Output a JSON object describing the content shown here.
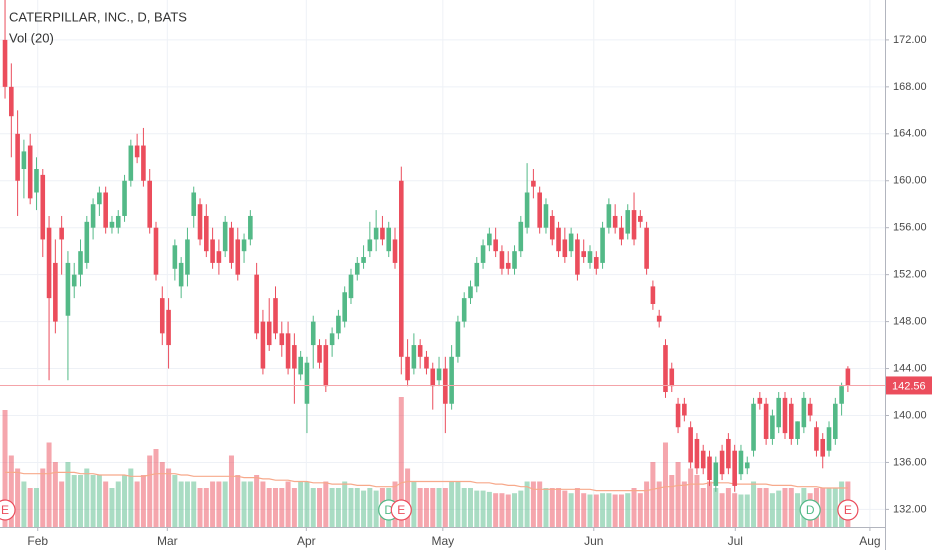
{
  "chart_data": {
    "type": "candlestick",
    "title": "CATERPILLAR, INC., D, BATS",
    "indicator": "Vol (20)",
    "colors": {
      "up": "#53b987",
      "down": "#eb4d5c"
    },
    "open": [
      172,
      168,
      164,
      161,
      163,
      159,
      160.5,
      156,
      153,
      156,
      148.5,
      151,
      152,
      153,
      156,
      158,
      159,
      156,
      156,
      157,
      160,
      163,
      163,
      160,
      156,
      150,
      149,
      152.5,
      151,
      152,
      157,
      158,
      157,
      155,
      154,
      154,
      156,
      155,
      154,
      155,
      152,
      148,
      148,
      150,
      147,
      147,
      146,
      143.5,
      141,
      146,
      146,
      146,
      146,
      147,
      148,
      150,
      152,
      153,
      154,
      155,
      156,
      154,
      155,
      160,
      145,
      144,
      146,
      145,
      144,
      143,
      144,
      141,
      145,
      148,
      150,
      151,
      153,
      154.5,
      155,
      154,
      153,
      152.5,
      154,
      156,
      160,
      159,
      156,
      157,
      156,
      155,
      154,
      155,
      154,
      153,
      153.5,
      153,
      156,
      157,
      156,
      155.5,
      157.5,
      157,
      156,
      151,
      148.5,
      146,
      144,
      141,
      141,
      139,
      138,
      137,
      136.5,
      134,
      137,
      138,
      137,
      135,
      135.5,
      137,
      141.5,
      141,
      138,
      139,
      141.5,
      141,
      138,
      139,
      141,
      139,
      138,
      137,
      138,
      141,
      144
    ],
    "high": [
      175.5,
      170,
      166,
      163.5,
      164,
      162,
      161,
      157,
      155,
      157,
      154,
      153,
      155,
      157,
      158.5,
      159.5,
      159.5,
      157,
      157.5,
      160.5,
      163.5,
      164,
      164.5,
      161,
      156.5,
      151,
      150,
      155,
      153.5,
      156,
      159.5,
      158.5,
      158,
      156,
      155,
      157,
      156.5,
      156,
      155.5,
      157.5,
      153,
      149,
      150,
      151,
      148,
      148,
      147,
      145.5,
      145,
      148.5,
      146.5,
      146.5,
      147.5,
      149,
      151,
      152.5,
      153.5,
      154.5,
      156.5,
      157.5,
      157,
      156.5,
      156,
      161.2,
      146.5,
      147,
      146.5,
      145.5,
      144.5,
      145,
      145,
      146,
      148.5,
      150.5,
      151.5,
      153.5,
      155,
      156,
      156,
      154.5,
      154,
      154.5,
      157,
      161.5,
      161,
      159.5,
      158.5,
      157.5,
      156.5,
      156,
      156,
      155.5,
      155,
      154.5,
      154,
      156.5,
      158.5,
      158,
      157,
      158,
      159,
      157.5,
      156.5,
      151.5,
      149,
      146.5,
      144.5,
      141.5,
      141.5,
      139.5,
      138.5,
      137.5,
      137,
      136.5,
      137.5,
      138.5,
      137.5,
      137.5,
      136.5,
      141.5,
      142,
      141.5,
      140.5,
      142,
      142,
      141.5,
      139.5,
      142,
      141.5,
      139.5,
      138.5,
      139.5,
      141.5,
      142.8,
      144.2
    ],
    "low": [
      167,
      162,
      157,
      158.5,
      158,
      157.5,
      153.5,
      143,
      147,
      152,
      143,
      150,
      151,
      152.5,
      155,
      157,
      155.5,
      155.5,
      155.5,
      156.5,
      159.5,
      161.5,
      159.5,
      155.5,
      151.5,
      146,
      144,
      151.5,
      150,
      151,
      156,
      154.5,
      153.5,
      152.5,
      152,
      153.5,
      152.5,
      151.5,
      153,
      154.5,
      146.5,
      143.5,
      145.5,
      146.5,
      145,
      143.5,
      141,
      143,
      138.5,
      144,
      144,
      142,
      145,
      146.5,
      147.5,
      149.5,
      151.5,
      152.5,
      153.5,
      154,
      154.5,
      153.5,
      152.5,
      143.5,
      142.5,
      143.5,
      144,
      143.5,
      140.5,
      142.5,
      138.5,
      140.5,
      144.5,
      147.5,
      149.5,
      150.5,
      152.5,
      154,
      153.5,
      152,
      152,
      152,
      153.5,
      155.5,
      158.5,
      155.5,
      155.5,
      154.5,
      153.5,
      153,
      153.5,
      151.5,
      153,
      152.5,
      152,
      152.5,
      155.5,
      155.5,
      154.5,
      155,
      154.5,
      156,
      152,
      149,
      147.5,
      141.5,
      142,
      138.5,
      139.5,
      135.5,
      135,
      135,
      134,
      133.5,
      134.5,
      135,
      133.5,
      134.5,
      135,
      136.5,
      140.5,
      137.5,
      137.5,
      138.5,
      138,
      137.5,
      137.5,
      138.5,
      139.5,
      136.5,
      135.5,
      136.5,
      137.5,
      140,
      142
    ],
    "close": [
      168,
      165.5,
      160,
      162.5,
      158.5,
      161,
      155,
      150,
      148,
      155,
      153,
      152,
      154,
      156.5,
      158,
      159,
      156,
      156.5,
      157,
      160,
      163,
      162,
      160,
      156,
      152,
      147,
      146,
      154.5,
      153,
      155,
      159,
      155,
      154,
      153,
      153,
      156.5,
      153,
      152,
      155,
      157,
      147,
      144,
      146,
      147,
      146,
      144,
      144,
      145,
      144.5,
      148,
      144.5,
      142.5,
      147,
      148.5,
      150.5,
      152,
      153,
      153.5,
      155,
      156,
      155,
      156,
      153,
      145,
      143,
      146,
      145,
      144,
      142.5,
      144,
      141,
      145,
      148,
      150,
      151,
      153,
      154.5,
      155.5,
      154,
      152.5,
      152.5,
      154,
      156.5,
      159,
      159.5,
      156,
      158,
      155,
      154,
      153.5,
      155.5,
      152,
      153.5,
      154,
      152.5,
      156,
      158,
      156,
      155,
      157.5,
      155,
      156.5,
      152.5,
      149.5,
      148,
      142,
      142.5,
      139,
      140,
      136,
      135.5,
      135.5,
      134.5,
      136,
      135,
      135.5,
      134,
      137,
      136,
      141,
      141,
      138,
      140,
      141.5,
      138.5,
      138,
      139.5,
      141.5,
      140,
      137,
      136.5,
      139,
      141,
      142.5,
      142.56
    ],
    "volume": [
      9,
      5.5,
      4.5,
      3.5,
      3,
      3,
      4.5,
      6.5,
      5,
      3.5,
      5,
      4,
      4,
      4.5,
      4,
      4,
      3.5,
      3,
      3.5,
      4,
      4.5,
      3.5,
      4,
      5.5,
      6,
      5,
      4.5,
      4,
      3.5,
      3.5,
      3.5,
      3,
      3,
      3.5,
      3.5,
      3.5,
      5.5,
      4,
      3.5,
      3.5,
      4,
      3.5,
      3,
      3,
      3,
      3.5,
      3,
      3.5,
      3.5,
      3,
      3,
      3.5,
      3,
      3,
      3.5,
      3,
      3,
      2.8,
      3,
      2.8,
      3,
      3,
      3.5,
      10,
      4.5,
      3.5,
      3,
      3,
      3,
      3,
      3,
      3.5,
      3.5,
      3,
      3,
      2.8,
      2.8,
      2.7,
      2.6,
      2.6,
      2.5,
      2.6,
      2.8,
      3.5,
      3.5,
      3.5,
      3,
      3,
      3,
      2.8,
      2.6,
      3,
      2.6,
      2.5,
      2.5,
      2.6,
      2.6,
      2.5,
      2.5,
      2.6,
      3,
      2.6,
      3.5,
      5,
      3.5,
      6.5,
      4,
      5,
      3.5,
      4.5,
      4,
      3,
      3.5,
      3,
      2.6,
      3,
      2.6,
      2.5,
      2.5,
      3.5,
      3,
      3,
      2.6,
      2.8,
      3,
      3,
      2.6,
      3,
      2.6,
      3,
      3,
      3,
      3,
      3.5,
      3.5
    ],
    "volume_ma": [
      4.2,
      4.2,
      4.2,
      4.1,
      4.1,
      4.1,
      4.1,
      4.1,
      4.2,
      4.2,
      4.2,
      4.2,
      4.1,
      4.1,
      4.1,
      4.0,
      4.0,
      4.0,
      4.0,
      4.0,
      3.9,
      3.9,
      3.9,
      4.0,
      4.1,
      4.1,
      4.1,
      4.1,
      4.0,
      4.0,
      3.9,
      3.9,
      3.9,
      3.9,
      3.9,
      3.9,
      3.9,
      3.9,
      3.8,
      3.8,
      3.8,
      3.7,
      3.7,
      3.6,
      3.6,
      3.6,
      3.5,
      3.5,
      3.5,
      3.4,
      3.4,
      3.4,
      3.3,
      3.3,
      3.3,
      3.3,
      3.2,
      3.2,
      3.2,
      3.1,
      3.1,
      3.1,
      3.1,
      3.4,
      3.5,
      3.5,
      3.5,
      3.5,
      3.5,
      3.5,
      3.5,
      3.5,
      3.5,
      3.5,
      3.5,
      3.4,
      3.4,
      3.4,
      3.3,
      3.3,
      3.2,
      3.2,
      3.1,
      3.1,
      2.9,
      2.9,
      2.9,
      2.9,
      2.9,
      2.9,
      2.9,
      2.9,
      2.9,
      2.9,
      2.8,
      2.8,
      2.8,
      2.8,
      2.8,
      2.8,
      2.8,
      2.8,
      2.8,
      2.9,
      3.0,
      3.1,
      3.1,
      3.2,
      3.2,
      3.3,
      3.3,
      3.3,
      3.4,
      3.4,
      3.4,
      3.4,
      3.3,
      3.3,
      3.3,
      3.3,
      3.3,
      3.3,
      3.2,
      3.2,
      3.2,
      3.2,
      3.1,
      3.1,
      3.1,
      3.1,
      3.0,
      3.0,
      3.0,
      3.0,
      3.0
    ],
    "volume_ma_color": "#f7a98b",
    "last": 142.56,
    "events": [
      {
        "label": "E",
        "candle": 0,
        "color": "#eb4d5c"
      },
      {
        "label": "D",
        "candle": 61,
        "color": "#53b987"
      },
      {
        "label": "E",
        "candle": 63,
        "color": "#eb4d5c"
      },
      {
        "label": "D",
        "candle": 128,
        "color": "#53b987"
      },
      {
        "label": "E",
        "candle": 134,
        "color": "#eb4d5c"
      }
    ],
    "xlim": [
      -0.8,
      139.9
    ],
    "xticks": [
      {
        "value": 5.2,
        "label": "Feb"
      },
      {
        "value": 25.8,
        "label": "Mar"
      },
      {
        "value": 47.9,
        "label": "Apr"
      },
      {
        "value": 69.6,
        "label": "May"
      },
      {
        "value": 93.6,
        "label": "Jun"
      },
      {
        "value": 116.1,
        "label": "Jul"
      },
      {
        "value": 137.5,
        "label": "Aug"
      }
    ],
    "ylim": [
      130.5,
      175.4
    ],
    "yticks": [
      {
        "value": 132,
        "label": "132.00"
      },
      {
        "value": 136,
        "label": "136.00"
      },
      {
        "value": 140,
        "label": "140.00"
      },
      {
        "value": 144,
        "label": "144.00"
      },
      {
        "value": 148,
        "label": "148.00"
      },
      {
        "value": 152,
        "label": "152.00"
      },
      {
        "value": 156,
        "label": "156.00"
      },
      {
        "value": 160,
        "label": "160.00"
      },
      {
        "value": 164,
        "label": "164.00"
      },
      {
        "value": 168,
        "label": "168.00"
      },
      {
        "value": 172,
        "label": "172.00"
      }
    ],
    "grid": true
  }
}
